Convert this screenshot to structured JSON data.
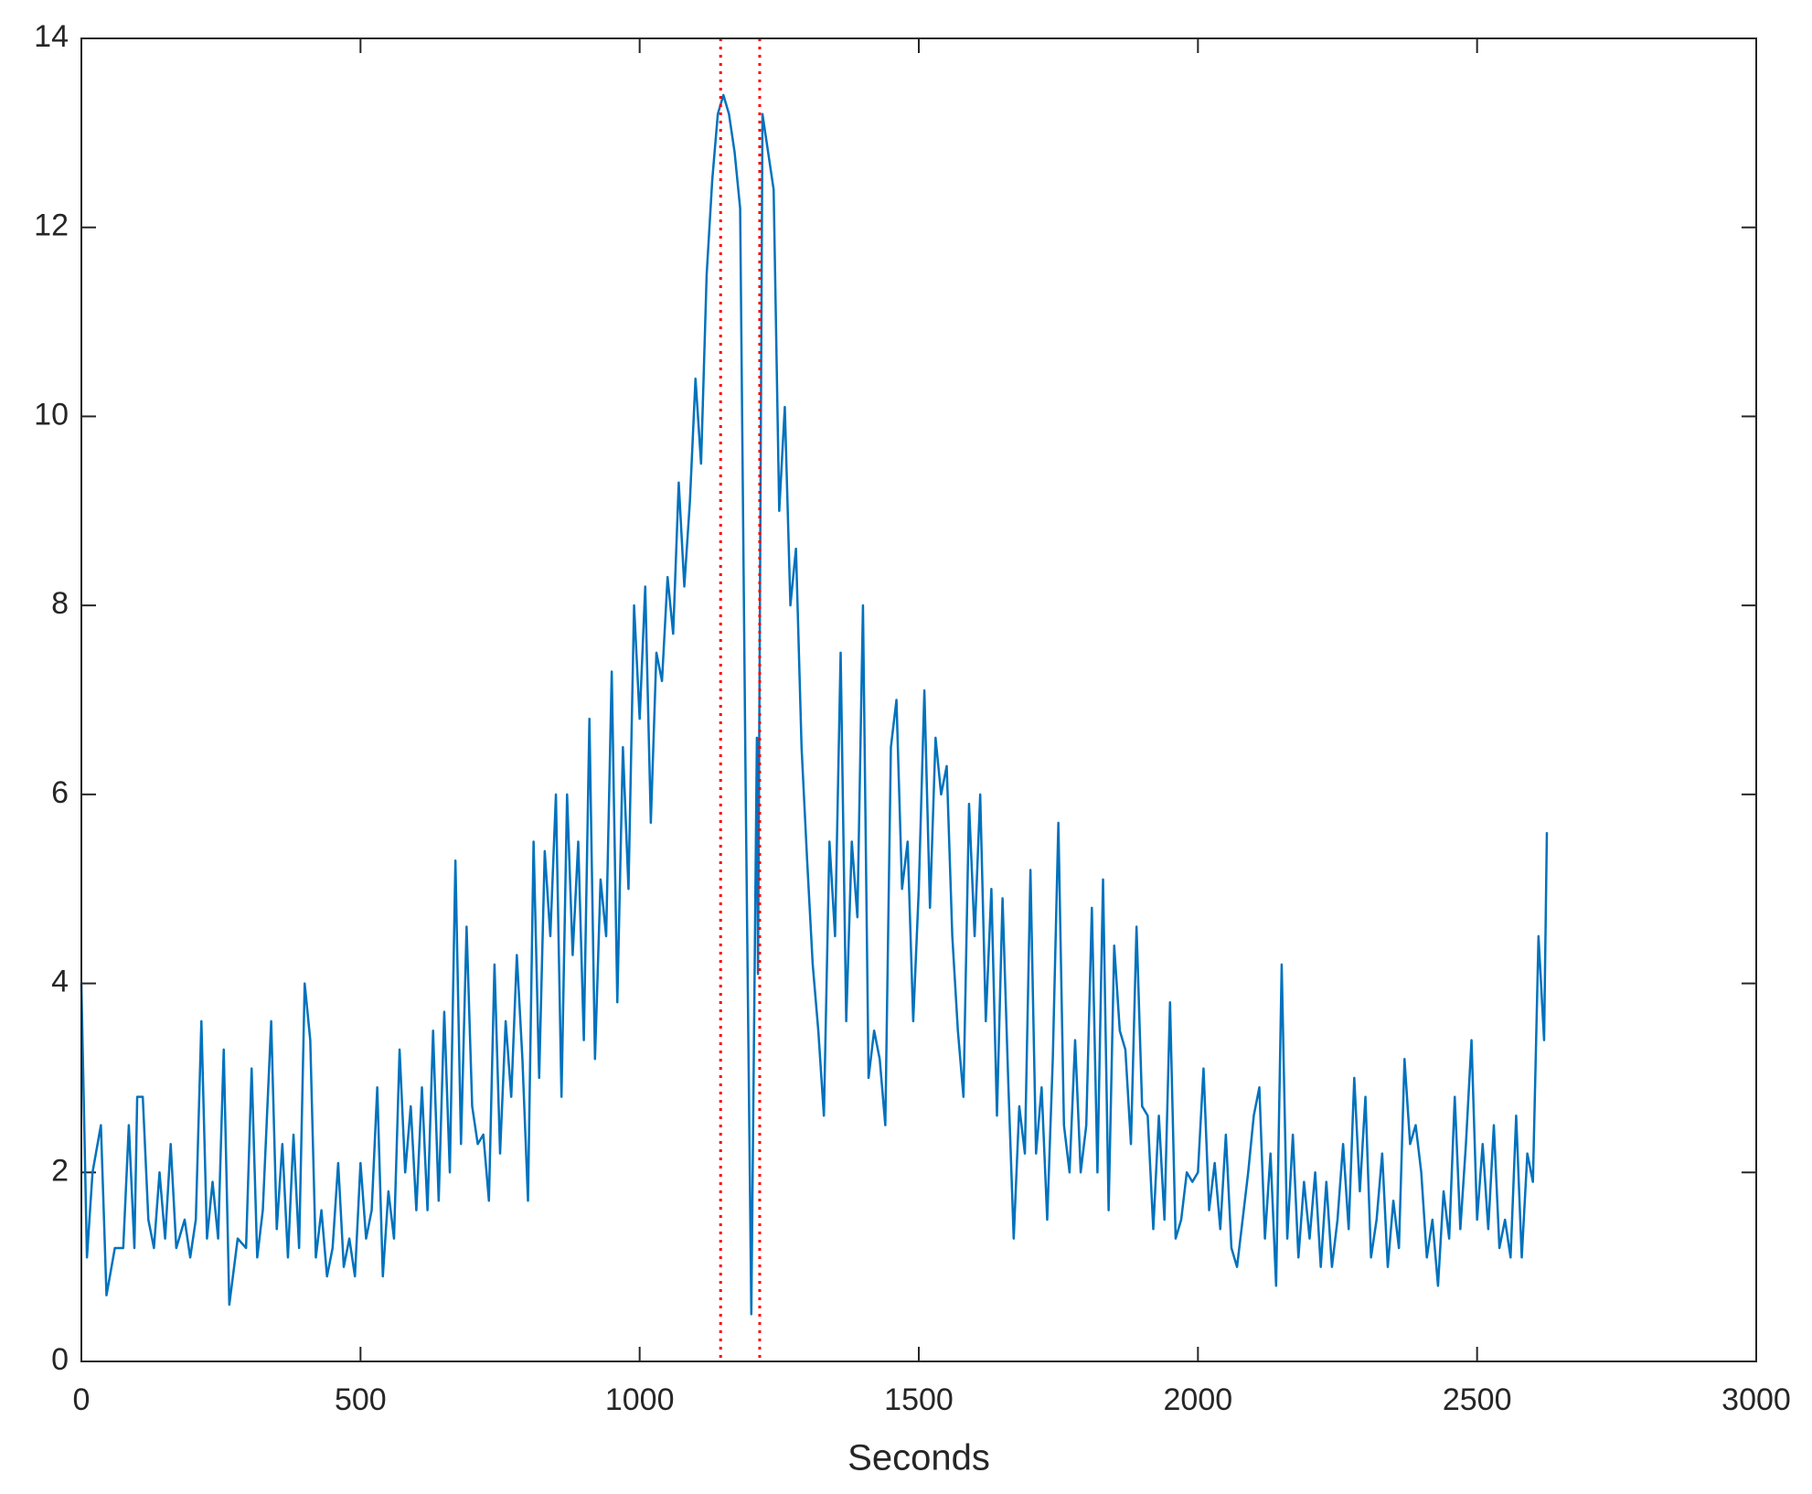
{
  "chart_data": {
    "type": "line",
    "xlabel": "Seconds",
    "x": [
      0,
      10,
      20,
      35,
      45,
      60,
      75,
      85,
      95,
      100,
      110,
      120,
      130,
      140,
      150,
      160,
      170,
      185,
      195,
      205,
      215,
      225,
      235,
      245,
      255,
      265,
      280,
      295,
      305,
      315,
      325,
      340,
      350,
      360,
      370,
      380,
      390,
      400,
      410,
      420,
      430,
      440,
      450,
      460,
      470,
      480,
      490,
      500,
      510,
      520,
      530,
      540,
      550,
      560,
      570,
      580,
      590,
      600,
      610,
      620,
      630,
      640,
      650,
      660,
      670,
      680,
      690,
      700,
      710,
      720,
      730,
      740,
      750,
      760,
      770,
      780,
      790,
      800,
      810,
      820,
      830,
      840,
      850,
      860,
      870,
      880,
      890,
      900,
      910,
      920,
      930,
      940,
      950,
      960,
      970,
      980,
      990,
      1000,
      1010,
      1020,
      1030,
      1040,
      1050,
      1060,
      1070,
      1080,
      1090,
      1100,
      1110,
      1120,
      1130,
      1140,
      1150,
      1160,
      1170,
      1180,
      1190,
      1200,
      1210,
      1212,
      1220,
      1230,
      1240,
      1250,
      1260,
      1270,
      1280,
      1290,
      1300,
      1310,
      1320,
      1330,
      1340,
      1350,
      1360,
      1370,
      1380,
      1390,
      1400,
      1410,
      1420,
      1430,
      1440,
      1450,
      1460,
      1470,
      1480,
      1490,
      1500,
      1510,
      1520,
      1530,
      1540,
      1550,
      1560,
      1570,
      1580,
      1590,
      1600,
      1610,
      1620,
      1630,
      1640,
      1650,
      1660,
      1670,
      1680,
      1690,
      1700,
      1710,
      1720,
      1730,
      1740,
      1750,
      1760,
      1770,
      1780,
      1790,
      1800,
      1810,
      1820,
      1830,
      1840,
      1850,
      1860,
      1870,
      1880,
      1890,
      1900,
      1910,
      1920,
      1930,
      1940,
      1950,
      1960,
      1970,
      1980,
      1990,
      2000,
      2010,
      2020,
      2030,
      2040,
      2050,
      2060,
      2070,
      2080,
      2090,
      2100,
      2110,
      2120,
      2130,
      2140,
      2150,
      2160,
      2170,
      2180,
      2190,
      2200,
      2210,
      2220,
      2230,
      2240,
      2250,
      2260,
      2270,
      2280,
      2290,
      2300,
      2310,
      2320,
      2330,
      2340,
      2350,
      2360,
      2370,
      2380,
      2390,
      2400,
      2410,
      2420,
      2430,
      2440,
      2450,
      2460,
      2470,
      2480,
      2490,
      2500,
      2510,
      2520,
      2530,
      2540,
      2550,
      2560,
      2570,
      2580,
      2590,
      2600,
      2610,
      2620,
      2625
    ],
    "series": [
      {
        "color": "#0072bd",
        "values": [
          4.0,
          1.1,
          2.0,
          2.5,
          0.7,
          1.2,
          1.2,
          2.5,
          1.2,
          2.8,
          2.8,
          1.5,
          1.2,
          2.0,
          1.3,
          2.3,
          1.2,
          1.5,
          1.1,
          1.5,
          3.6,
          1.3,
          1.9,
          1.3,
          3.3,
          0.6,
          1.3,
          1.2,
          3.1,
          1.1,
          1.6,
          3.6,
          1.4,
          2.3,
          1.1,
          2.4,
          1.2,
          4.0,
          3.4,
          1.1,
          1.6,
          0.9,
          1.2,
          2.1,
          1.0,
          1.3,
          0.9,
          2.1,
          1.3,
          1.6,
          2.9,
          0.9,
          1.8,
          1.3,
          3.3,
          2.0,
          2.7,
          1.6,
          2.9,
          1.6,
          3.5,
          1.7,
          3.7,
          2.0,
          5.3,
          2.3,
          4.6,
          2.7,
          2.3,
          2.4,
          1.7,
          4.2,
          2.2,
          3.6,
          2.8,
          4.3,
          3.2,
          1.7,
          5.5,
          3.0,
          5.4,
          4.5,
          6.0,
          2.8,
          6.0,
          4.3,
          5.5,
          3.4,
          6.8,
          3.2,
          5.1,
          4.5,
          7.3,
          3.8,
          6.5,
          5.0,
          8.0,
          6.8,
          8.2,
          5.7,
          7.5,
          7.2,
          8.3,
          7.7,
          9.3,
          8.2,
          9.1,
          10.4,
          9.5,
          11.5,
          12.5,
          13.2,
          13.4,
          13.2,
          12.8,
          12.2,
          6.0,
          0.5,
          6.6,
          4.1,
          13.2,
          12.8,
          12.4,
          9.0,
          10.1,
          8.0,
          8.6,
          6.5,
          5.3,
          4.2,
          3.5,
          2.6,
          5.5,
          4.5,
          7.5,
          3.6,
          5.5,
          4.7,
          8.0,
          3.0,
          3.5,
          3.2,
          2.5,
          6.5,
          7.0,
          5.0,
          5.5,
          3.6,
          5.0,
          7.1,
          4.8,
          6.6,
          6.0,
          6.3,
          4.5,
          3.5,
          2.8,
          5.9,
          4.5,
          6.0,
          3.6,
          5.0,
          2.6,
          4.9,
          3.0,
          1.3,
          2.7,
          2.2,
          5.2,
          2.2,
          2.9,
          1.5,
          3.2,
          5.7,
          2.5,
          2.0,
          3.4,
          2.0,
          2.5,
          4.8,
          2.0,
          5.1,
          1.6,
          4.4,
          3.5,
          3.3,
          2.3,
          4.6,
          2.7,
          2.6,
          1.4,
          2.6,
          1.5,
          3.8,
          1.3,
          1.5,
          2.0,
          1.9,
          2.0,
          3.1,
          1.6,
          2.1,
          1.4,
          2.4,
          1.2,
          1.0,
          1.5,
          2.0,
          2.6,
          2.9,
          1.3,
          2.2,
          0.8,
          4.2,
          1.3,
          2.4,
          1.1,
          1.9,
          1.3,
          2.0,
          1.0,
          1.9,
          1.0,
          1.5,
          2.3,
          1.4,
          3.0,
          1.8,
          2.8,
          1.1,
          1.5,
          2.2,
          1.0,
          1.7,
          1.2,
          3.2,
          2.3,
          2.5,
          2.0,
          1.1,
          1.5,
          0.8,
          1.8,
          1.3,
          2.8,
          1.4,
          2.3,
          3.4,
          1.5,
          2.3,
          1.4,
          2.5,
          1.2,
          1.5,
          1.1,
          2.6,
          1.1,
          2.2,
          1.9,
          4.5,
          3.4,
          5.6
        ]
      }
    ],
    "vlines": [
      1145,
      1215
    ],
    "vline_color": "#ff0000",
    "xlim": [
      0,
      3000
    ],
    "xticks": [
      0,
      500,
      1000,
      1500,
      2000,
      2500,
      3000
    ],
    "ylim": [
      0,
      14
    ],
    "yticks": [
      0,
      2,
      4,
      6,
      8,
      10,
      12,
      14
    ]
  }
}
